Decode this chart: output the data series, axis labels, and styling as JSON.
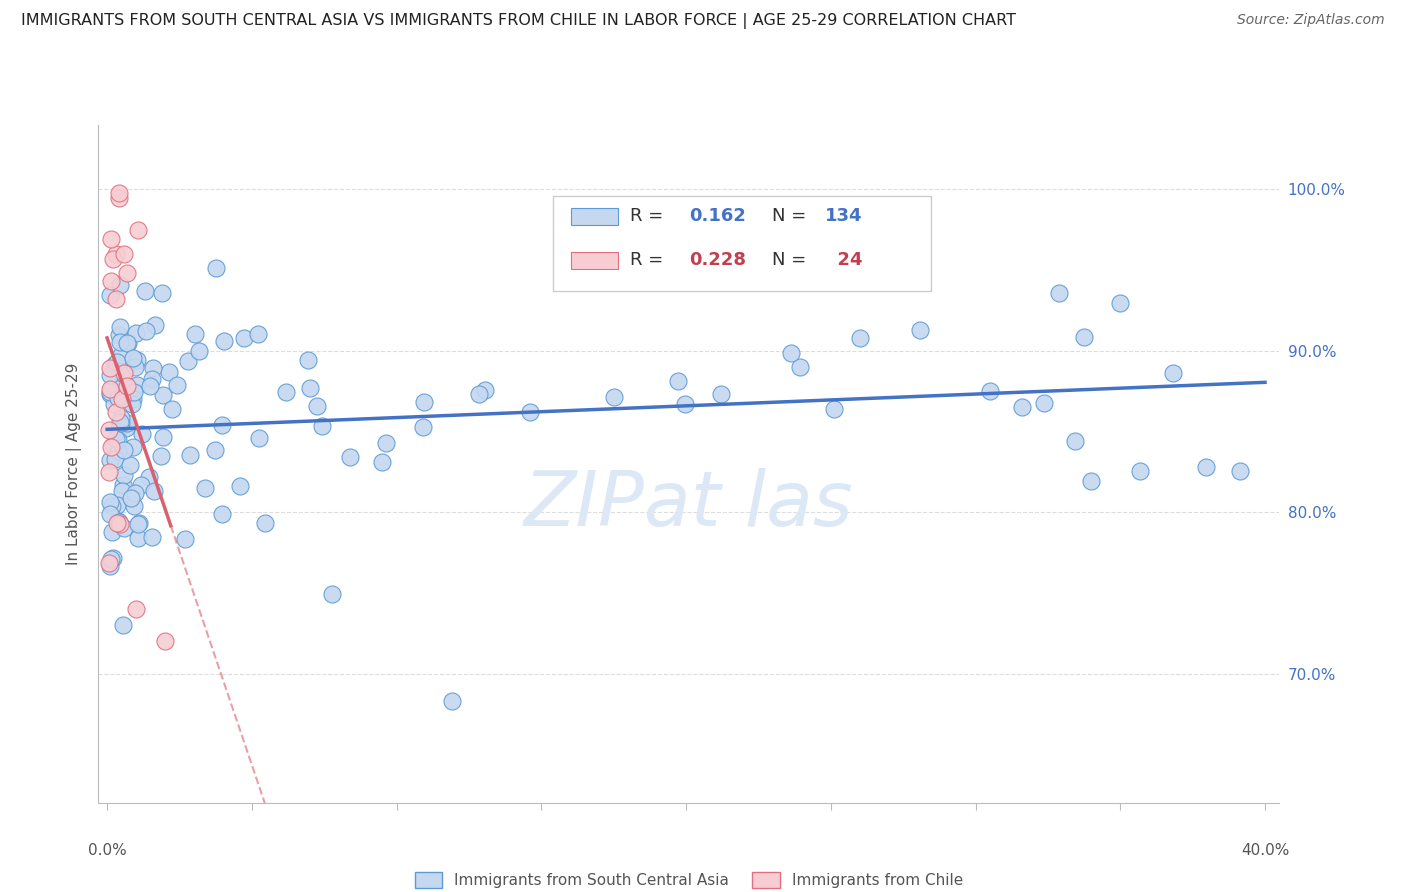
{
  "title": "IMMIGRANTS FROM SOUTH CENTRAL ASIA VS IMMIGRANTS FROM CHILE IN LABOR FORCE | AGE 25-29 CORRELATION CHART",
  "source": "Source: ZipAtlas.com",
  "ylabel": "In Labor Force | Age 25-29",
  "legend_label_blue": "Immigrants from South Central Asia",
  "legend_label_pink": "Immigrants from Chile",
  "R_blue": 0.162,
  "N_blue": 134,
  "R_pink": 0.228,
  "N_pink": 24,
  "color_blue_fill": "#c5d8f0",
  "color_pink_fill": "#f7cdd3",
  "color_blue_edge": "#5b9bd5",
  "color_pink_edge": "#e07080",
  "color_blue_line": "#4472c4",
  "color_pink_line": "#d9606e",
  "color_blue_text": "#4472c4",
  "color_pink_text": "#c04050",
  "watermark_color": "#dce8f5",
  "xmin": 0.0,
  "xmax": 0.4,
  "ymin": 0.62,
  "ymax": 1.04,
  "yticks": [
    0.7,
    0.8,
    0.9,
    1.0
  ],
  "ytick_labels": [
    "70.0%",
    "80.0%",
    "90.0%",
    "100.0%"
  ],
  "blue_seed": 7,
  "pink_seed": 13,
  "grid_color": "#dddddd",
  "spine_color": "#bbbbbb",
  "tick_label_color": "#555555",
  "title_fontsize": 11.5,
  "axis_label_fontsize": 11,
  "tick_label_fontsize": 11,
  "legend_fontsize": 13,
  "source_fontsize": 10
}
